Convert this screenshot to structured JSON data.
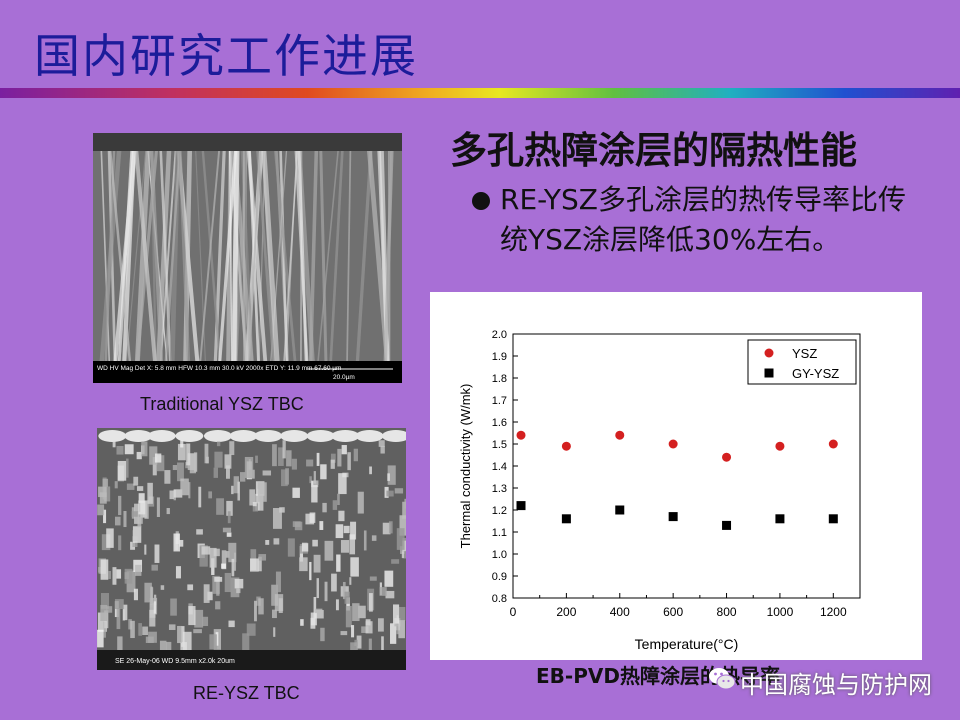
{
  "slide": {
    "title": "国内研究工作进展",
    "subtitle": "多孔热障涂层的隔热性能",
    "bullet": "RE-YSZ多孔涂层的热传导率比传统YSZ涂层降低30%左右。"
  },
  "images": {
    "top_caption": "Traditional YSZ TBC",
    "top_databar": "WD HV Mag Det X: 5.8 mm HFW 10.3 mm 30.0 kV 2000x ETD Y: 11.9 mm 67.60 µm",
    "top_scale": "20.0µm",
    "bottom_caption": "RE-YSZ TBC",
    "bottom_databar": "SE 26-May-06 WD 9.5mm x2.0k 20um"
  },
  "chart_caption": "EB-PVD热障涂层的热导率",
  "watermark": {
    "text": "中国腐蚀与防护网",
    "icon": "wechat-icon"
  },
  "chart_data": {
    "type": "scatter",
    "xlabel": "Temperature(°C)",
    "ylabel": "Thermal conductivity (W/mk)",
    "xlim": [
      0,
      1300
    ],
    "ylim": [
      0.8,
      2.0
    ],
    "xticks": [
      0,
      200,
      400,
      600,
      800,
      1000,
      1200
    ],
    "yticks": [
      0.8,
      0.9,
      1.0,
      1.1,
      1.2,
      1.3,
      1.4,
      1.5,
      1.6,
      1.7,
      1.8,
      1.9,
      2.0
    ],
    "grid": false,
    "legend_position": "top-right",
    "series": [
      {
        "name": "YSZ",
        "marker": "circle",
        "color": "#d42020",
        "x": [
          30,
          200,
          400,
          600,
          800,
          1000,
          1200
        ],
        "y": [
          1.54,
          1.49,
          1.54,
          1.5,
          1.44,
          1.49,
          1.5
        ]
      },
      {
        "name": "GY-YSZ",
        "marker": "square",
        "color": "#000000",
        "x": [
          30,
          200,
          400,
          600,
          800,
          1000,
          1200
        ],
        "y": [
          1.22,
          1.16,
          1.2,
          1.17,
          1.13,
          1.16,
          1.16
        ]
      }
    ]
  }
}
